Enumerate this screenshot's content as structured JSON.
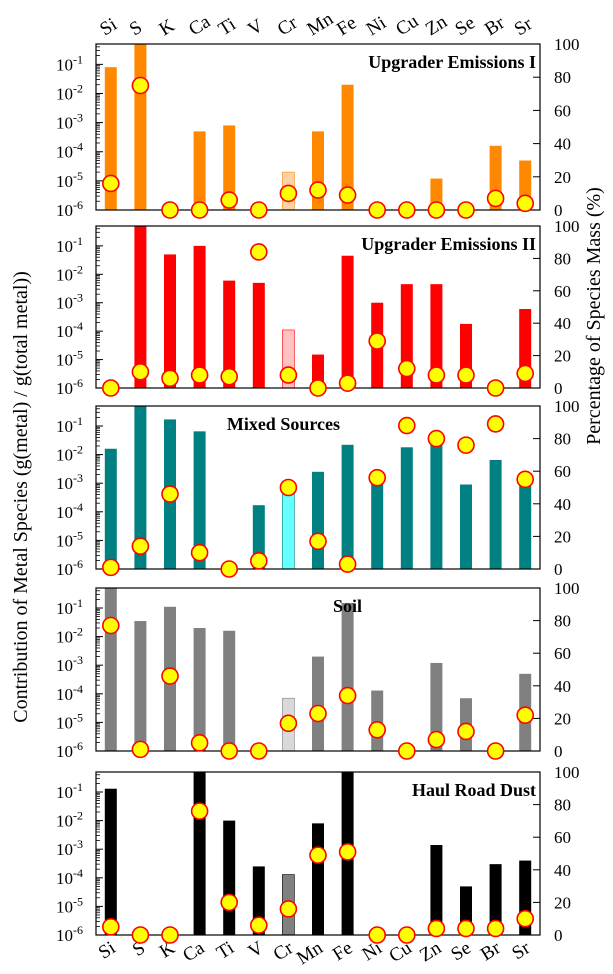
{
  "y_left_label": "Contribution of Metal Species (g(metal) / g(total metal))",
  "y_right_label": "Percentage of Species Mass (%)",
  "elements": [
    "Si",
    "S",
    "K",
    "Ca",
    "Ti",
    "V",
    "Cr",
    "Mn",
    "Fe",
    "Ni",
    "Cu",
    "Zn",
    "Se",
    "Br",
    "Sr"
  ],
  "left_tick_labels": [
    "10-6",
    "10-5",
    "10-4",
    "10-3",
    "10-2",
    "10-1"
  ],
  "right_tick_labels": [
    "0",
    "20",
    "40",
    "60",
    "80",
    "100"
  ],
  "chart_data": [
    {
      "type": "bar",
      "title": "Upgrader Emissions I",
      "bar_color": "#ff8800",
      "light_color": "#ffd2a6",
      "light_categories": [
        "Cr"
      ],
      "categories": [
        "Si",
        "S",
        "K",
        "Ca",
        "Ti",
        "V",
        "Cr",
        "Mn",
        "Fe",
        "Ni",
        "Cu",
        "Zn",
        "Se",
        "Br",
        "Sr"
      ],
      "values": [
        0.08,
        0.5,
        null,
        0.0005,
        0.0008,
        null,
        2e-05,
        0.0005,
        0.02,
        null,
        null,
        1.2e-05,
        null,
        0.00016,
        5e-05
      ],
      "percent_markers": [
        16,
        75,
        0,
        0,
        6,
        0,
        10,
        12,
        9,
        0,
        0,
        0,
        0,
        7,
        4
      ],
      "y_left_scale": "log",
      "ylim_left": [
        1e-06,
        0.5
      ],
      "ylim_right": [
        0,
        100
      ]
    },
    {
      "type": "bar",
      "title": "Upgrader Emissions II",
      "bar_color": "#ff0000",
      "light_color": "#ffc2c2",
      "light_categories": [
        "Cr"
      ],
      "categories": [
        "Si",
        "S",
        "K",
        "Ca",
        "Ti",
        "V",
        "Cr",
        "Mn",
        "Fe",
        "Ni",
        "Cu",
        "Zn",
        "Se",
        "Br",
        "Sr"
      ],
      "values": [
        null,
        0.5,
        0.05,
        0.1,
        0.006,
        0.005,
        0.00011,
        1.5e-05,
        0.045,
        0.001,
        0.0045,
        0.0045,
        0.00018,
        null,
        0.0006
      ],
      "percent_markers": [
        0,
        10,
        6,
        8,
        7,
        84,
        8,
        0,
        3,
        29,
        12,
        8,
        8,
        0,
        9
      ],
      "y_left_scale": "log",
      "ylim_left": [
        1e-06,
        0.5
      ],
      "ylim_right": [
        0,
        100
      ]
    },
    {
      "type": "bar",
      "title": "Mixed Sources",
      "bar_color": "#008080",
      "light_color": "#66ffff",
      "light_categories": [
        "Cr"
      ],
      "categories": [
        "Si",
        "S",
        "K",
        "Ca",
        "Ti",
        "V",
        "Cr",
        "Mn",
        "Fe",
        "Ni",
        "Cu",
        "Zn",
        "Se",
        "Br",
        "Sr"
      ],
      "values": [
        0.016,
        0.5,
        0.17,
        0.065,
        null,
        0.00017,
        0.00045,
        0.0025,
        0.022,
        0.0012,
        0.018,
        0.03,
        0.0009,
        0.0065,
        0.0011
      ],
      "percent_markers": [
        1,
        14,
        46,
        10,
        0,
        5,
        50,
        17,
        3,
        56,
        88,
        80,
        76,
        89,
        55
      ],
      "y_left_scale": "log",
      "ylim_left": [
        1e-06,
        0.5
      ],
      "ylim_right": [
        0,
        100
      ]
    },
    {
      "type": "bar",
      "title": "Soil",
      "bar_color": "#808080",
      "light_color": "#d9d9d9",
      "light_categories": [
        "Cr"
      ],
      "categories": [
        "Si",
        "S",
        "K",
        "Ca",
        "Ti",
        "V",
        "Cr",
        "Mn",
        "Fe",
        "Ni",
        "Cu",
        "Zn",
        "Se",
        "Br",
        "Sr"
      ],
      "values": [
        0.5,
        0.035,
        0.11,
        0.02,
        0.016,
        null,
        7e-05,
        0.002,
        0.15,
        0.00013,
        null,
        0.0012,
        7e-05,
        null,
        0.0005
      ],
      "percent_markers": [
        77,
        1,
        46,
        5,
        0,
        0,
        17,
        23,
        34,
        13,
        0,
        7,
        12,
        0,
        22
      ],
      "y_left_scale": "log",
      "ylim_left": [
        1e-06,
        0.5
      ],
      "ylim_right": [
        0,
        100
      ]
    },
    {
      "type": "bar",
      "title": "Haul Road Dust",
      "bar_color": "#000000",
      "light_color": "#808080",
      "light_categories": [
        "Cr"
      ],
      "categories": [
        "Si",
        "S",
        "K",
        "Ca",
        "Ti",
        "V",
        "Cr",
        "Mn",
        "Fe",
        "Ni",
        "Cu",
        "Zn",
        "Se",
        "Br",
        "Sr"
      ],
      "values": [
        0.13,
        null,
        null,
        0.5,
        0.01,
        0.00025,
        0.00013,
        0.008,
        0.5,
        null,
        null,
        0.0014,
        5e-05,
        0.0003,
        0.0004
      ],
      "percent_markers": [
        5,
        0,
        0,
        76,
        20,
        6,
        16,
        49,
        51,
        0,
        0,
        4,
        4,
        4,
        10
      ],
      "y_left_scale": "log",
      "ylim_left": [
        1e-06,
        0.5
      ],
      "ylim_right": [
        0,
        100
      ]
    }
  ]
}
